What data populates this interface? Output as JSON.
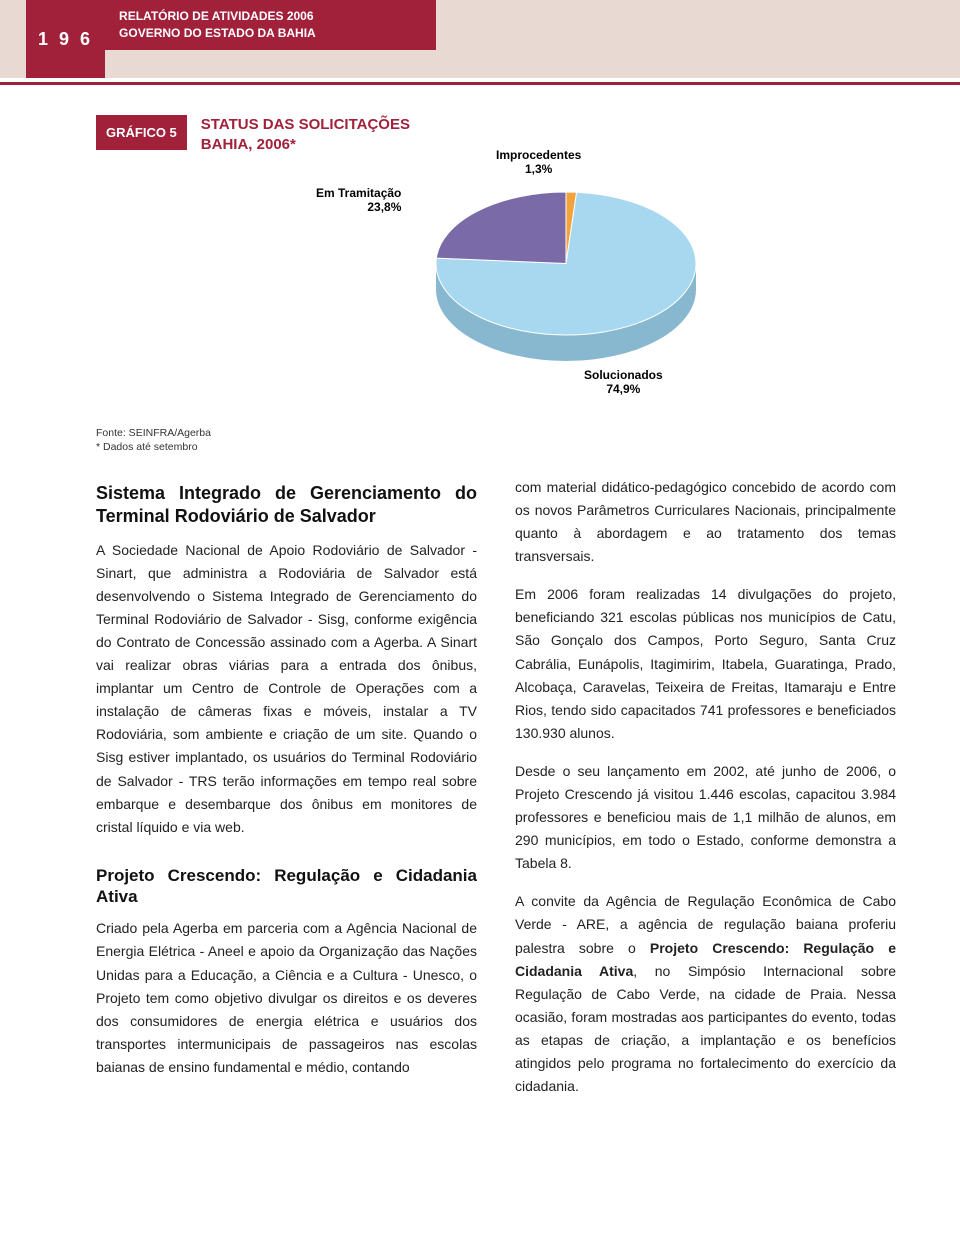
{
  "header": {
    "page_number": "1 9 6",
    "title_line1": "RELATÓRIO DE ATIVIDADES 2006",
    "title_line2": "GOVERNO DO ESTADO DA BAHIA"
  },
  "chart": {
    "badge": "GRÁFICO 5",
    "title_line1": "STATUS DAS SOLICITAÇÕES",
    "title_line2": "BAHIA, 2006*",
    "type": "pie",
    "slices": [
      {
        "label": "Improcedentes",
        "value": "1,3%",
        "pct": 1.3,
        "color": "#f2a33c"
      },
      {
        "label": "Solucionados",
        "value": "74,9%",
        "pct": 74.9,
        "color": "#a7d8f0"
      },
      {
        "label": "Em Tramitação",
        "value": "23,8%",
        "pct": 23.8,
        "color": "#7b6aa8"
      }
    ],
    "base_color": "#88b8d0",
    "radius": 130,
    "depth": 26,
    "source_line1": "Fonte: SEINFRA/Agerba",
    "source_line2": "* Dados até setembro"
  },
  "body": {
    "left": {
      "h1": "Sistema Integrado de Gerenciamento do Terminal Rodoviário de Salvador",
      "p1": "A Sociedade Nacional de Apoio Rodoviário de Salvador - Sinart, que administra a Rodoviária de Salvador está desenvolvendo o Sistema Integrado de Gerenciamento do Terminal Rodoviário de Salvador - Sisg, conforme exigência do Contrato de Concessão assinado com a Agerba. A Sinart vai realizar obras viárias para a entrada dos ônibus, implantar um Centro de Controle de Operações com a instalação de câmeras fixas e móveis, instalar a TV Rodoviária, som ambiente e criação de um site. Quando o Sisg estiver implantado, os usuários do Terminal Rodoviário de Salvador - TRS terão informações em tempo real sobre embarque e desembarque dos ônibus em monitores de cristal líquido e via web.",
      "h2": "Projeto Crescendo: Regulação e Cidadania Ativa",
      "p2": "Criado pela Agerba em parceria com a Agência Nacional de Energia Elétrica - Aneel e apoio da Organização das Nações Unidas para a Educação, a Ciência e a Cultura - Unesco, o Projeto tem como objetivo divulgar os direitos e os deveres dos consumidores de energia elétrica e usuários dos transportes intermunicipais de passageiros nas escolas baianas de ensino fundamental e médio, contando"
    },
    "right": {
      "p1": "com material didático-pedagógico concebido de acordo com os novos Parâmetros Curriculares Nacionais, principalmente quanto à abordagem e ao tratamento dos temas transversais.",
      "p2": "Em 2006 foram realizadas 14 divulgações do projeto, beneficiando 321 escolas públicas nos municípios de Catu, São Gonçalo dos Campos, Porto Seguro, Santa Cruz Cabrália, Eunápolis, Itagimirim, Itabela, Guaratinga, Prado, Alcobaça, Caravelas, Teixeira de Freitas, Itamaraju e Entre Rios, tendo sido capacitados 741 professores e beneficiados 130.930 alunos.",
      "p3": "Desde o seu lançamento em 2002, até junho de 2006, o Projeto Crescendo já visitou 1.446 escolas, capacitou 3.984 professores e beneficiou mais de 1,1 milhão de alunos, em 290 municípios, em todo o Estado, conforme demonstra a Tabela 8.",
      "p4_pre": "A convite da Agência de Regulação Econômica de Cabo Verde - ARE, a agência de regulação baiana proferiu palestra sobre o ",
      "p4_bold": "Projeto Crescendo: Regulação e Cidadania Ativa",
      "p4_post": ", no Simpósio Internacional sobre Regulação de Cabo Verde, na cidade de Praia. Nessa ocasião, foram mostradas aos participantes do evento, todas as etapas de criação, a implantação e os benefícios atingidos pelo programa no fortalecimento do exercício da cidadania."
    }
  }
}
